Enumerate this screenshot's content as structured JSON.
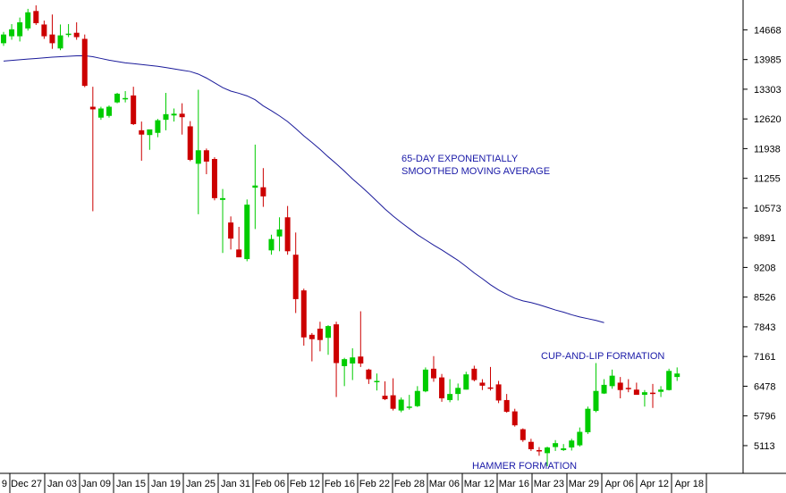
{
  "chart_data": {
    "type": "candlestick",
    "title": "",
    "xlabel": "",
    "ylabel": "",
    "ylim": [
      4640,
      15230
    ],
    "grid": false,
    "legend": "none",
    "colors": {
      "up": "#00cc00",
      "down": "#cc0000",
      "ma_line": "#1a1a9a",
      "annotation": "#1a1aa8",
      "axis": "#000000"
    },
    "y_ticks": [
      "14668",
      "13985",
      "13303",
      "12620",
      "11938",
      "11255",
      "10573",
      "9891",
      "9208",
      "8526",
      "7843",
      "7161",
      "6478",
      "5796",
      "5113"
    ],
    "x_ticks": [
      "9",
      "Dec 27",
      "Jan 03",
      "Jan 09",
      "Jan 15",
      "Jan 19",
      "Jan 25",
      "Jan 31",
      "Feb 06",
      "Feb 12",
      "Feb 16",
      "Feb 22",
      "Feb 28",
      "Mar 06",
      "Mar 12",
      "Mar 16",
      "Mar 23",
      "Mar 29",
      "Apr 06",
      "Apr 12",
      "Apr 18"
    ],
    "series": [
      {
        "kind": "ohlc",
        "values": [
          {
            "o": 14360,
            "h": 14620,
            "l": 14300,
            "c": 14560
          },
          {
            "o": 14520,
            "h": 14800,
            "l": 14440,
            "c": 14680
          },
          {
            "o": 14520,
            "h": 14950,
            "l": 14400,
            "c": 14840
          },
          {
            "o": 14700,
            "h": 15150,
            "l": 14650,
            "c": 15070
          },
          {
            "o": 15100,
            "h": 15230,
            "l": 14780,
            "c": 14820
          },
          {
            "o": 14790,
            "h": 14880,
            "l": 14460,
            "c": 14520
          },
          {
            "o": 14560,
            "h": 15020,
            "l": 14230,
            "c": 14360
          },
          {
            "o": 14240,
            "h": 14790,
            "l": 14200,
            "c": 14540
          },
          {
            "o": 14580,
            "h": 14800,
            "l": 14500,
            "c": 14580
          },
          {
            "o": 14600,
            "h": 14840,
            "l": 14440,
            "c": 14500
          },
          {
            "o": 14460,
            "h": 14560,
            "l": 13350,
            "c": 13380
          },
          {
            "o": 12900,
            "h": 13360,
            "l": 10500,
            "c": 12840
          },
          {
            "o": 12650,
            "h": 12900,
            "l": 12600,
            "c": 12860
          },
          {
            "o": 12690,
            "h": 12930,
            "l": 12650,
            "c": 12900
          },
          {
            "o": 13000,
            "h": 13220,
            "l": 12980,
            "c": 13200
          },
          {
            "o": 13100,
            "h": 13260,
            "l": 13000,
            "c": 13100
          },
          {
            "o": 13160,
            "h": 13360,
            "l": 12480,
            "c": 12500
          },
          {
            "o": 12360,
            "h": 12560,
            "l": 11660,
            "c": 12260
          },
          {
            "o": 12250,
            "h": 12350,
            "l": 11910,
            "c": 12380
          },
          {
            "o": 12300,
            "h": 12620,
            "l": 12200,
            "c": 12590
          },
          {
            "o": 12600,
            "h": 13220,
            "l": 12360,
            "c": 12730
          },
          {
            "o": 12700,
            "h": 12860,
            "l": 12560,
            "c": 12740
          },
          {
            "o": 12740,
            "h": 12980,
            "l": 12260,
            "c": 12660
          },
          {
            "o": 12450,
            "h": 12570,
            "l": 11650,
            "c": 11680
          },
          {
            "o": 11590,
            "h": 13290,
            "l": 10430,
            "c": 11900
          },
          {
            "o": 11900,
            "h": 11940,
            "l": 11350,
            "c": 11640
          },
          {
            "o": 11700,
            "h": 11740,
            "l": 10750,
            "c": 10800
          },
          {
            "o": 10760,
            "h": 11010,
            "l": 9540,
            "c": 10800
          },
          {
            "o": 10240,
            "h": 10380,
            "l": 9620,
            "c": 9870
          },
          {
            "o": 9620,
            "h": 10140,
            "l": 9500,
            "c": 9440
          },
          {
            "o": 9400,
            "h": 10770,
            "l": 9350,
            "c": 10650
          },
          {
            "o": 11040,
            "h": 12030,
            "l": 10090,
            "c": 11090
          },
          {
            "o": 11050,
            "h": 11490,
            "l": 10600,
            "c": 10840
          },
          {
            "o": 9600,
            "h": 9960,
            "l": 9500,
            "c": 9860
          },
          {
            "o": 9920,
            "h": 10360,
            "l": 9580,
            "c": 10080
          },
          {
            "o": 10360,
            "h": 10620,
            "l": 9500,
            "c": 9580
          },
          {
            "o": 9500,
            "h": 10010,
            "l": 8160,
            "c": 8480
          },
          {
            "o": 8680,
            "h": 8720,
            "l": 7410,
            "c": 7600
          },
          {
            "o": 7660,
            "h": 7700,
            "l": 7050,
            "c": 7560
          },
          {
            "o": 7800,
            "h": 7960,
            "l": 7280,
            "c": 7540
          },
          {
            "o": 7590,
            "h": 7880,
            "l": 7200,
            "c": 7860
          },
          {
            "o": 7900,
            "h": 7960,
            "l": 6230,
            "c": 7010
          },
          {
            "o": 6940,
            "h": 7130,
            "l": 6480,
            "c": 7100
          },
          {
            "o": 7000,
            "h": 7350,
            "l": 6620,
            "c": 7140
          },
          {
            "o": 7160,
            "h": 8200,
            "l": 6920,
            "c": 7000
          },
          {
            "o": 6860,
            "h": 6880,
            "l": 6530,
            "c": 6640
          },
          {
            "o": 6600,
            "h": 6770,
            "l": 6380,
            "c": 6600
          },
          {
            "o": 6260,
            "h": 6590,
            "l": 6160,
            "c": 6180
          },
          {
            "o": 6270,
            "h": 6660,
            "l": 5920,
            "c": 5960
          },
          {
            "o": 5920,
            "h": 6220,
            "l": 5880,
            "c": 6170
          },
          {
            "o": 6000,
            "h": 6280,
            "l": 5940,
            "c": 6010
          },
          {
            "o": 6020,
            "h": 6480,
            "l": 6000,
            "c": 6370
          },
          {
            "o": 6360,
            "h": 6910,
            "l": 6340,
            "c": 6860
          },
          {
            "o": 6880,
            "h": 7170,
            "l": 6580,
            "c": 6660
          },
          {
            "o": 6680,
            "h": 6760,
            "l": 6120,
            "c": 6200
          },
          {
            "o": 6160,
            "h": 6640,
            "l": 6110,
            "c": 6300
          },
          {
            "o": 6300,
            "h": 6540,
            "l": 6150,
            "c": 6440
          },
          {
            "o": 6400,
            "h": 6810,
            "l": 6400,
            "c": 6750
          },
          {
            "o": 6880,
            "h": 6950,
            "l": 6590,
            "c": 6620
          },
          {
            "o": 6560,
            "h": 6640,
            "l": 6390,
            "c": 6490
          },
          {
            "o": 6450,
            "h": 6920,
            "l": 6380,
            "c": 6440
          },
          {
            "o": 6520,
            "h": 6600,
            "l": 6090,
            "c": 6150
          },
          {
            "o": 6160,
            "h": 6300,
            "l": 5870,
            "c": 5890
          },
          {
            "o": 5900,
            "h": 5960,
            "l": 5550,
            "c": 5580
          },
          {
            "o": 5490,
            "h": 5510,
            "l": 5200,
            "c": 5240
          },
          {
            "o": 5200,
            "h": 5270,
            "l": 4990,
            "c": 5030
          },
          {
            "o": 5010,
            "h": 5080,
            "l": 4880,
            "c": 5000
          },
          {
            "o": 4940,
            "h": 5090,
            "l": 4640,
            "c": 5070
          },
          {
            "o": 5080,
            "h": 5240,
            "l": 4990,
            "c": 5170
          },
          {
            "o": 5010,
            "h": 5150,
            "l": 4990,
            "c": 5050
          },
          {
            "o": 5070,
            "h": 5270,
            "l": 5000,
            "c": 5230
          },
          {
            "o": 5120,
            "h": 5530,
            "l": 5090,
            "c": 5430
          },
          {
            "o": 5420,
            "h": 6010,
            "l": 5380,
            "c": 5960
          },
          {
            "o": 5910,
            "h": 7010,
            "l": 5880,
            "c": 6370
          },
          {
            "o": 6310,
            "h": 6640,
            "l": 6300,
            "c": 6510
          },
          {
            "o": 6480,
            "h": 6860,
            "l": 6420,
            "c": 6720
          },
          {
            "o": 6560,
            "h": 6690,
            "l": 6200,
            "c": 6390
          },
          {
            "o": 6440,
            "h": 6640,
            "l": 6340,
            "c": 6420
          },
          {
            "o": 6400,
            "h": 6560,
            "l": 6300,
            "c": 6280
          },
          {
            "o": 6280,
            "h": 6390,
            "l": 6010,
            "c": 6340
          },
          {
            "o": 6330,
            "h": 6530,
            "l": 5980,
            "c": 6320
          },
          {
            "o": 6350,
            "h": 6480,
            "l": 6230,
            "c": 6400
          },
          {
            "o": 6390,
            "h": 6880,
            "l": 6380,
            "c": 6830
          },
          {
            "o": 6690,
            "h": 6910,
            "l": 6600,
            "c": 6770
          }
        ]
      },
      {
        "kind": "line",
        "values": [
          13950,
          13965,
          13980,
          13995,
          14010,
          14025,
          14040,
          14050,
          14060,
          14070,
          14074,
          14050,
          14010,
          13970,
          13940,
          13910,
          13890,
          13870,
          13850,
          13830,
          13800,
          13770,
          13740,
          13710,
          13650,
          13560,
          13450,
          13340,
          13260,
          13210,
          13150,
          13060,
          12920,
          12810,
          12690,
          12560,
          12400,
          12230,
          12080,
          11920,
          11750,
          11590,
          11420,
          11240,
          11080,
          10910,
          10730,
          10550,
          10390,
          10240,
          10100,
          9960,
          9840,
          9720,
          9610,
          9490,
          9370,
          9230,
          9080,
          8950,
          8810,
          8690,
          8590,
          8500,
          8440,
          8400,
          8350,
          8290,
          8230,
          8180,
          8120,
          8070,
          8030,
          7990,
          7940
        ]
      }
    ],
    "annotations": [
      {
        "lines": [
          "65-DAY EXPONENTIALLY",
          "SMOOTHED MOVING AVERAGE"
        ]
      },
      {
        "lines": [
          "CUP-AND-LIP FORMATION"
        ]
      },
      {
        "lines": [
          "HAMMER FORMATION"
        ]
      }
    ]
  }
}
